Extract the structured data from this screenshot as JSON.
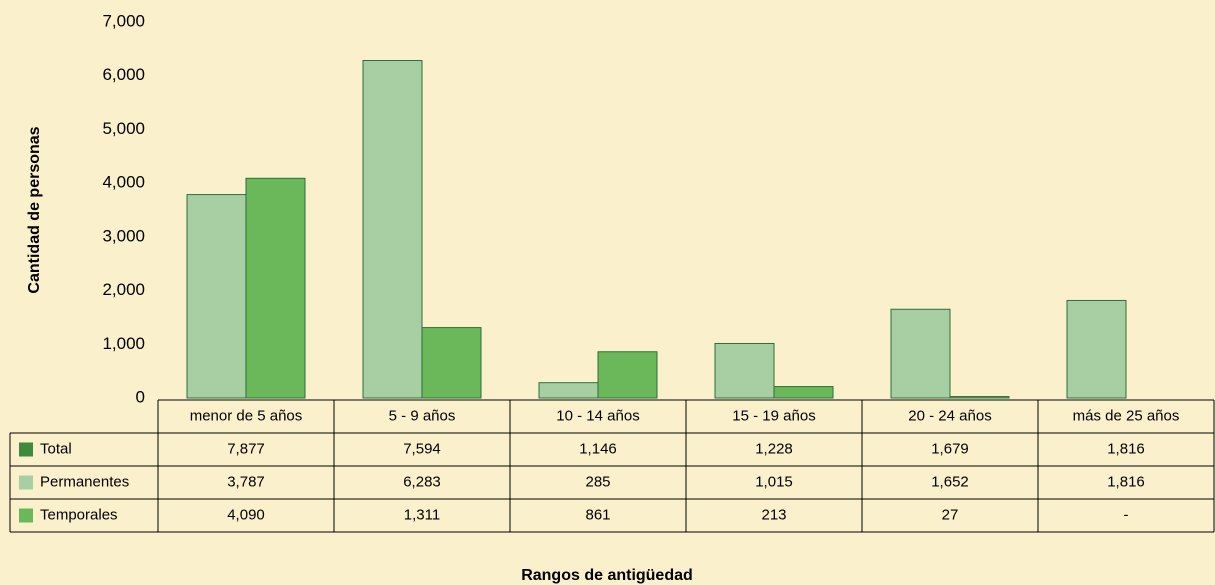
{
  "chart_data": {
    "type": "bar",
    "ylabel": "Cantidad de personas",
    "xlabel": "Rangos de antigüedad",
    "categories": [
      "menor de 5 años",
      "5 - 9 años",
      "10 - 14 años",
      "15 - 19 años",
      "20 - 24 años",
      "más  de 25 años"
    ],
    "series": [
      {
        "name": "Total",
        "color": "#3f8a3c",
        "show_bars": false,
        "values": [
          7877,
          7594,
          1146,
          1228,
          1679,
          1816
        ],
        "value_labels": [
          "7,877",
          "7,594",
          "1,146",
          "1,228",
          "1,679",
          "1,816"
        ]
      },
      {
        "name": "Permanentes",
        "color": "#a8cfa4",
        "show_bars": true,
        "values": [
          3787,
          6283,
          285,
          1015,
          1652,
          1816
        ],
        "value_labels": [
          "3,787",
          "6,283",
          "285",
          "1,015",
          "1,652",
          "1,816"
        ]
      },
      {
        "name": "Temporales",
        "color": "#6ab85a",
        "show_bars": true,
        "values": [
          4090,
          1311,
          861,
          213,
          27,
          null
        ],
        "value_labels": [
          "4,090",
          "1,311",
          "861",
          "213",
          "27",
          "-"
        ]
      }
    ],
    "ylim": [
      0,
      7000
    ],
    "yticks": [
      0,
      {
        "value": 1000,
        "label": "1,000"
      },
      {
        "value": 2000,
        "label": "2,000"
      },
      {
        "value": 3000,
        "label": "3,000"
      },
      {
        "value": 4000,
        "label": "4,000"
      },
      {
        "value": 5000,
        "label": "5,000"
      },
      {
        "value": 6000,
        "label": "6,000"
      },
      {
        "value": 7000,
        "label": "7,000"
      }
    ],
    "grid": false
  }
}
